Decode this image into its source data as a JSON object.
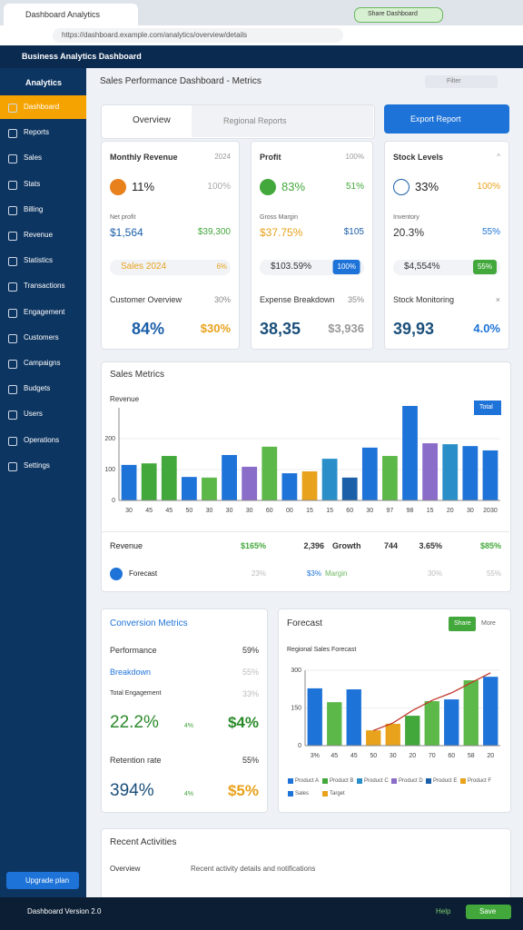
{
  "browser": {
    "tab_title": "Dashboard Analytics",
    "url": "https://dashboard.example.com/analytics/overview/details",
    "badge": "Share Dashboard"
  },
  "app": {
    "title": "Business Analytics Dashboard",
    "menu": "Analytics",
    "breadcrumb": "Sales Performance Dashboard - Metrics",
    "search": "Filter"
  },
  "sidebar": {
    "items": [
      "Dashboard",
      "Reports",
      "Sales",
      "Stats",
      "Billing",
      "Revenue",
      "Statistics",
      "Transactions",
      "Engagement",
      "Customers",
      "Campaigns",
      "Budgets",
      "Users",
      "Operations",
      "Settings"
    ],
    "button": "Upgrade plan"
  },
  "tabs": {
    "first": "Overview",
    "second": "Regional Reports",
    "export": "Export Report"
  },
  "cards": [
    {
      "title": "Monthly Revenue",
      "header_value": "2024",
      "metric": "11%",
      "metric_right": "100%",
      "label": "Net profit",
      "value": "$1,564",
      "value_right": "$39,300",
      "pill": "Sales 2024",
      "pill_right": "6%",
      "section": "Customer Overview",
      "section_right": "30%",
      "big": "84%",
      "big_right": "$30%"
    },
    {
      "title": "Profit",
      "header_value": "100%",
      "metric": "83%",
      "metric_right": "51%",
      "label": "Gross Margin",
      "value": "$37.75%",
      "value_right": "$105",
      "pill": "$103.59%",
      "pill_right": "100%",
      "section": "Expense Breakdown",
      "section_right": "35%",
      "big": "38,35",
      "big_right": "$3,936"
    },
    {
      "title": "Stock Levels",
      "header_value": "^",
      "metric": "33%",
      "metric_right": "100%",
      "label": "Inventory",
      "value": "20.3%",
      "value_right": "55%",
      "pill": "$4,554%",
      "pill_right": "55%",
      "section": "Stock Monitoring",
      "section_right": "×",
      "big": "39,93",
      "big_right": "4.0%"
    }
  ],
  "sales_chart": {
    "title": "Sales Metrics",
    "subtitle": "Revenue",
    "legend": "Total",
    "categories": [
      "30",
      "45",
      "45",
      "50",
      "30",
      "30",
      "30",
      "60",
      "00",
      "15",
      "15",
      "60",
      "30",
      "97",
      "98",
      "15",
      "20",
      "30",
      "2030"
    ],
    "values": [
      115,
      120,
      144,
      76,
      74,
      147,
      109,
      174,
      88,
      94,
      135,
      74,
      171,
      144,
      306,
      185,
      182,
      176,
      162
    ],
    "ylim": [
      0,
      300
    ],
    "yticks": [
      0,
      100,
      200
    ]
  },
  "summary": {
    "rows": [
      [
        "Revenue",
        "$165%",
        "2,396",
        "Growth",
        "744",
        "3.65%",
        "$85%"
      ],
      [
        "Forecast",
        "23%",
        "$3%",
        "Margin",
        "30%",
        "55%"
      ]
    ]
  },
  "conversion": {
    "title": "Conversion Metrics",
    "rows": [
      [
        "Performance",
        "59%"
      ],
      [
        "Breakdown",
        "55%"
      ],
      [
        "Total Engagement",
        "33%"
      ]
    ],
    "big": [
      "22.2%",
      "4%",
      "$4%"
    ],
    "retention": [
      "Retention rate",
      "55%"
    ],
    "big2": [
      "394%",
      "4%",
      "$5%"
    ]
  },
  "forecast_chart": {
    "title": "Forecast",
    "share": "Share",
    "more": "More",
    "subtitle": "Regional Sales Forecast",
    "categories": [
      "3%",
      "45",
      "45",
      "50",
      "30",
      "20",
      "70",
      "60",
      "58",
      "20"
    ],
    "values": [
      228,
      173,
      224,
      61,
      87,
      119,
      177,
      184,
      260,
      274
    ],
    "trend": [
      null,
      null,
      null,
      60,
      90,
      140,
      180,
      210,
      250,
      290
    ],
    "ylim": [
      0,
      300
    ],
    "yticks": [
      0,
      150,
      300
    ],
    "legend": [
      "Product A",
      "Product B",
      "Product C",
      "Product D",
      "Product E",
      "Product F",
      "Sales",
      "Target"
    ]
  },
  "activity": {
    "title": "Recent Activities",
    "label": "Overview",
    "text": "Recent activity details and notifications"
  },
  "footer": {
    "version": "Dashboard Version 2.0",
    "save": "Save",
    "help": "Help"
  }
}
